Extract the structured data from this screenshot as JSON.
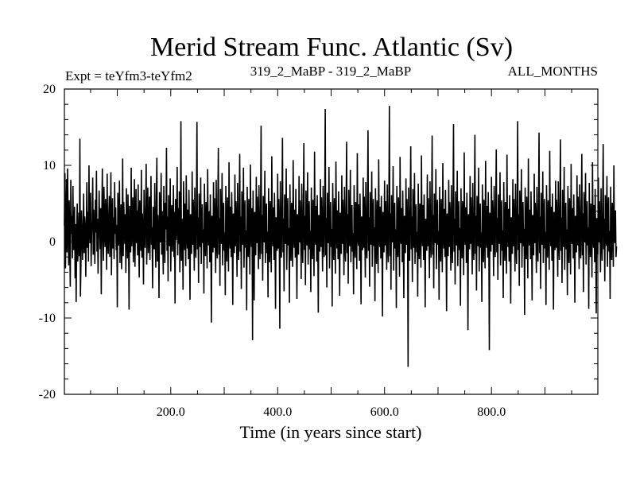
{
  "chart_data": {
    "type": "line",
    "title": "Merid Stream Func. Atlantic (Sv)",
    "subtitle_left": "Expt = teYfm3-teYfm2",
    "subtitle_center": "319_2_MaBP - 319_2_MaBP",
    "subtitle_right": "ALL_MONTHS",
    "xlabel": "Time (in years since start)",
    "ylabel": "",
    "xlim": [
      1,
      999
    ],
    "ylim": [
      -20,
      20
    ],
    "x_ticks": [
      200,
      400,
      600,
      800
    ],
    "x_tick_labels": [
      "200.0",
      "400.0",
      "600.0",
      "800.0"
    ],
    "y_ticks": [
      -20,
      -10,
      0,
      10,
      20
    ],
    "y_tick_labels": [
      "-20",
      "-10",
      "0",
      "10",
      "20"
    ],
    "zero_line": true,
    "series_color": "#000000",
    "series": [
      {
        "values_description_note": null,
        "x_start": 1,
        "x_step": 1,
        "values": [
          2.1,
          9.0,
          -3.5,
          1.6,
          8.2,
          -1.4,
          9.6,
          2.8,
          -3.1,
          5.4,
          0.2,
          -5.9,
          8.1,
          1.0,
          3.4,
          -2.2,
          7.3,
          -1.1,
          0.5,
          4.6,
          -4.8,
          2.3,
          -7.9,
          1.2,
          5.0,
          -2.6,
          -0.4,
          3.8,
          -1.9,
          13.5,
          -7.2,
          -3.0,
          4.1,
          1.8,
          -2.4,
          0.9,
          6.3,
          -1.5,
          3.3,
          2.1,
          -4.6,
          1.4,
          7.8,
          -0.8,
          3.9,
          -2.6,
          10.0,
          1.5,
          -0.2,
          6.4,
          -3.2,
          1.1,
          2.8,
          8.4,
          -1.7,
          4.2,
          0.6,
          -2.9,
          5.5,
          1.2,
          9.3,
          -1.3,
          3.0,
          -4.2,
          0.8,
          6.7,
          2.1,
          -1.0,
          4.4,
          -6.9,
          3.1,
          9.6,
          0.4,
          -2.5,
          7.2,
          1.9,
          -0.7,
          5.6,
          2.8,
          -3.7,
          8.9,
          0.5,
          -1.6,
          3.4,
          6.0,
          -2.0,
          1.3,
          9.1,
          -4.4,
          2.6,
          5.7,
          -0.9,
          3.2,
          -2.3,
          7.8,
          1.0,
          4.5,
          -1.1,
          2.2,
          -8.6,
          6.4,
          3.0,
          -0.5,
          8.0,
          -2.8,
          1.6,
          4.9,
          -3.6,
          0.2,
          10.9,
          -1.9,
          5.2,
          2.7,
          -0.3,
          3.6,
          -4.1,
          7.0,
          1.5,
          -2.2,
          6.2,
          0.8,
          -8.9,
          4.7,
          2.4,
          -1.4,
          9.7,
          -0.6,
          3.1,
          5.8,
          -2.7,
          1.1,
          8.2,
          -3.3,
          2.9,
          6.9,
          -0.2,
          4.1,
          -1.8,
          7.5,
          0.3,
          -4.7,
          5.4,
          2.0,
          -1.2,
          9.4,
          -2.1,
          3.7,
          0.9,
          -5.6,
          6.8,
          1.4,
          -0.8,
          4.3,
          10.2,
          -3.0,
          2.5,
          7.1,
          -1.5,
          0.6,
          5.9,
          -2.4,
          3.8,
          8.6,
          -0.4,
          1.9,
          -6.1,
          4.6,
          2.2,
          -1.0,
          7.7,
          0.7,
          -3.4,
          5.3,
          11.0,
          -2.6,
          3.5,
          1.2,
          -7.4,
          6.5,
          2.8,
          -0.1,
          9.0,
          -1.7,
          4.0,
          0.4,
          -4.3,
          7.3,
          2.1,
          -2.8,
          5.1,
          1.6,
          12.3,
          -1.2,
          3.3,
          -5.2,
          6.1,
          0.9,
          -0.6,
          8.3,
          -3.9,
          2.7,
          4.8,
          -1.3,
          1.0,
          7.4,
          -2.0,
          3.9,
          -8.1,
          5.6,
          0.2,
          2.6,
          9.8,
          -1.8,
          4.4,
          -0.3,
          6.6,
          -4.0,
          1.7,
          15.8,
          -2.5,
          3.0,
          0.8,
          -6.3,
          7.9,
          2.3,
          -1.1,
          5.0,
          -3.2,
          8.7,
          1.4,
          -0.9,
          4.2,
          -2.3,
          6.8,
          0.5,
          -7.6,
          3.6,
          1.9,
          -1.6,
          9.2,
          -0.4,
          5.5,
          2.0,
          -3.8,
          7.1,
          0.3,
          -2.1,
          4.7,
          15.7,
          -1.0,
          3.2,
          -5.4,
          6.3,
          1.1,
          -0.7,
          8.4,
          -2.9,
          2.5,
          4.9,
          -0.2,
          1.6,
          -6.8,
          7.6,
          0.8,
          -1.9,
          5.2,
          2.9,
          -3.5,
          9.5,
          1.3,
          -0.5,
          4.0,
          -2.7,
          6.2,
          0.6,
          -10.6,
          3.4,
          2.2,
          -1.4,
          7.8,
          -0.8,
          5.7,
          1.5,
          -4.1,
          8.1,
          0.2,
          -2.2,
          4.3,
          12.3,
          -1.7,
          3.1,
          -5.8,
          6.9,
          0.9,
          -0.3,
          9.0,
          -3.1,
          2.8,
          5.1,
          -1.2,
          1.2,
          -7.0,
          7.3,
          0.4,
          -2.6,
          5.8,
          2.4,
          -3.9,
          10.4,
          1.0,
          -0.9,
          4.6,
          -2.0,
          6.5,
          0.7,
          -8.3,
          3.7,
          1.8,
          -1.5,
          8.8,
          -0.6,
          5.3,
          1.9,
          -4.6,
          7.7,
          0.1,
          -2.4,
          4.8,
          11.5,
          -1.3,
          3.3,
          -6.2,
          6.6,
          1.2,
          -0.4,
          9.7,
          -3.4,
          2.6,
          5.4,
          -0.8,
          1.5,
          -9.0,
          7.2,
          0.6,
          -2.0,
          5.6,
          2.1,
          -4.3,
          10.1,
          1.4,
          -0.7,
          4.4,
          -12.9,
          6.7,
          0.3,
          -7.7,
          3.9,
          2.0,
          -1.8,
          8.5,
          -0.2,
          5.9,
          1.6,
          -3.6,
          7.4,
          0.8,
          -2.3,
          4.1,
          15.2,
          -1.6,
          3.5,
          -5.1,
          6.0,
          1.0,
          -0.1,
          9.3,
          -2.8,
          2.9,
          5.0,
          -1.5,
          1.3,
          -7.3,
          7.0,
          0.5,
          -2.7,
          5.3,
          2.5,
          -4.0,
          11.2,
          1.1,
          -0.6,
          4.5,
          -2.4,
          6.4,
          0.9,
          -8.8,
          3.2,
          1.7,
          -1.2,
          8.9,
          -0.9,
          5.6,
          1.3,
          -11.4,
          7.9,
          0.2,
          -2.1,
          4.9,
          13.6,
          -1.4,
          3.0,
          -6.5,
          6.2,
          1.5,
          -0.3,
          9.6,
          -3.7,
          2.4,
          5.7,
          -0.5,
          1.8,
          -8.0,
          7.5,
          0.7,
          -2.5,
          5.1,
          2.6,
          -3.3,
          10.7,
          1.2,
          -0.8,
          4.2,
          -2.1,
          6.9,
          0.4,
          -7.5,
          3.6,
          2.3,
          -1.7,
          8.6,
          -0.1,
          5.4,
          1.7,
          -4.9,
          7.6,
          0.9,
          -2.8,
          4.6,
          12.9,
          -1.1,
          3.4,
          -5.7,
          6.7,
          1.3,
          -0.5,
          9.1,
          -3.0,
          2.7,
          5.3,
          -1.0,
          1.4,
          -6.6,
          7.1,
          0.6,
          -2.3,
          5.5,
          2.2,
          -4.5,
          11.8,
          1.0,
          -0.4,
          4.7,
          -2.6,
          6.1,
          0.8,
          -9.3,
          3.5,
          1.9,
          -1.3,
          8.2,
          -0.7,
          5.8,
          1.4,
          -3.9,
          7.3,
          0.3,
          -2.0,
          4.4,
          17.4,
          -1.8,
          3.1,
          -6.0,
          6.4,
          1.1,
          -0.2,
          9.8,
          -3.5,
          2.5,
          5.2,
          -0.7,
          1.7,
          -8.5,
          7.7,
          0.5,
          -2.4,
          5.7,
          2.0,
          -4.2,
          10.5,
          1.5,
          -0.9,
          4.1,
          -2.3,
          6.6,
          0.2,
          -7.1,
          3.8,
          2.1,
          -1.6,
          8.7,
          -0.3,
          5.5,
          1.8,
          -4.4,
          7.2,
          0.7,
          -2.6,
          4.3,
          13.1,
          -1.5,
          3.6,
          -5.5,
          6.8,
          1.4,
          -0.6,
          9.4,
          -2.7,
          2.8,
          4.8,
          -1.3,
          1.1,
          -6.9,
          7.4,
          0.4,
          -2.1,
          5.2,
          2.7,
          -3.6,
          11.6,
          1.2,
          -0.5,
          4.9,
          -2.5,
          6.3,
          0.6,
          -8.2,
          3.3,
          1.6,
          -1.1,
          8.4,
          -0.8,
          5.9,
          1.2,
          -4.7,
          7.8,
          0.1,
          -2.2,
          4.5,
          14.6,
          -1.2,
          3.2,
          -5.9,
          6.5,
          1.0,
          -0.4,
          9.2,
          -3.3,
          2.6,
          5.6,
          -0.6,
          1.9,
          -7.8,
          7.0,
          0.8,
          -2.9,
          5.4,
          2.4,
          -4.1,
          10.8,
          1.3,
          -0.7,
          4.6,
          -2.2,
          6.0,
          0.9,
          -9.8,
          3.9,
          2.2,
          -1.4,
          8.0,
          -0.5,
          5.3,
          1.5,
          -3.7,
          7.5,
          0.4,
          -2.7,
          4.2,
          17.8,
          -1.9,
          3.7,
          -6.3,
          6.1,
          1.2,
          -0.1,
          9.9,
          -3.8,
          2.3,
          5.1,
          -0.9,
          1.6,
          -8.7,
          7.3,
          0.3,
          -2.0,
          5.8,
          2.3,
          -4.6,
          11.1,
          1.1,
          -0.3,
          4.4,
          -2.7,
          6.7,
          0.5,
          -7.4,
          3.4,
          1.8,
          -1.5,
          8.3,
          -0.4,
          5.6,
          1.9,
          -16.4,
          7.1,
          0.6,
          -2.5,
          4.7,
          12.5,
          -1.0,
          3.3,
          -5.3,
          6.9,
          1.5,
          -0.8,
          9.0,
          -2.9,
          2.9,
          4.9,
          -1.4,
          1.3,
          -7.2,
          7.6,
          0.2,
          -2.3,
          5.0,
          2.8,
          -3.4,
          11.3,
          1.0,
          -0.6,
          4.8,
          -2.4,
          6.2,
          0.7,
          -8.6,
          3.0,
          1.7,
          -1.2,
          8.8,
          -0.6,
          5.7,
          1.1,
          -4.8,
          7.9,
          0.9,
          -2.1,
          4.0,
          13.9,
          -1.7,
          3.5,
          -6.1,
          6.3,
          1.3,
          -0.2,
          9.5,
          -3.6,
          2.5,
          5.5,
          -0.4,
          1.4,
          -7.6,
          7.2,
          0.5,
          -2.6,
          5.6,
          2.1,
          -4.0,
          10.3,
          1.4,
          -0.9,
          4.3,
          -2.0,
          6.8,
          0.3,
          -9.1,
          3.7,
          2.0,
          -1.9,
          8.1,
          -0.7,
          5.2,
          1.6,
          -3.8,
          7.4,
          0.8,
          -2.8,
          4.6,
          15.4,
          -1.3,
          3.0,
          -5.6,
          6.6,
          1.1,
          -0.5,
          9.3,
          -3.2,
          2.7,
          5.3,
          -1.1,
          1.8,
          -8.4,
          7.0,
          0.7,
          -2.2,
          5.3,
          2.6,
          -4.4,
          11.7,
          1.2,
          -0.4,
          4.5,
          -2.8,
          6.4,
          0.4,
          -11.6,
          3.6,
          1.9,
          -1.0,
          8.6,
          -0.3,
          5.8,
          1.3,
          -4.3,
          7.7,
          0.2,
          -2.4,
          4.1,
          14.0,
          -1.6,
          3.4,
          -6.4,
          6.0,
          1.5,
          -0.6,
          9.7,
          -3.9,
          2.4,
          5.0,
          -0.8,
          1.2,
          -7.9,
          7.5,
          0.6,
          -2.7,
          5.5,
          2.2,
          -3.5,
          10.6,
          1.0,
          -0.8,
          4.7,
          -2.1,
          6.5,
          0.8,
          -14.2,
          3.8,
          2.3,
          -1.3,
          8.5,
          -0.4,
          5.4,
          1.7,
          -4.5,
          7.3,
          0.5,
          -2.0,
          4.8,
          12.1,
          -1.4,
          3.1,
          -5.0,
          6.2,
          1.2,
          -0.3,
          9.1,
          -3.1,
          2.8,
          5.4,
          -1.2,
          1.5,
          -7.4,
          7.8,
          0.3,
          -2.5,
          5.2,
          2.5,
          -4.2,
          11.4,
          1.3,
          -0.7,
          4.3,
          -2.6,
          6.1,
          0.6,
          -8.1,
          3.2,
          1.8,
          -1.6,
          8.2,
          -0.6,
          5.6,
          1.4,
          -3.9,
          7.6,
          0.7,
          -2.9,
          4.5,
          15.8,
          -1.1,
          3.6,
          -5.8,
          6.7,
          1.0,
          -0.2,
          9.5,
          -3.4,
          2.6,
          5.2,
          -0.6,
          1.7,
          -9.6,
          7.1,
          0.4,
          -2.3,
          5.9,
          2.0,
          -4.8,
          10.9,
          1.1,
          -0.5,
          4.2,
          -2.3,
          6.6,
          0.9,
          -7.7,
          3.5,
          2.1,
          -1.8,
          8.9,
          -0.2,
          5.1,
          1.8,
          -4.1,
          7.2,
          0.1,
          -2.6,
          4.4,
          14.3,
          -1.5,
          3.3,
          -6.2,
          6.4,
          1.4,
          -0.4,
          9.2,
          -2.8,
          2.5,
          5.6,
          -0.9,
          1.3,
          -8.3,
          7.4,
          0.8,
          -2.1,
          5.4,
          2.3,
          -3.7,
          11.9,
          1.5,
          -0.6,
          4.6,
          -2.5,
          6.3,
          0.2,
          -8.9,
          3.9,
          1.6,
          -1.1,
          8.0,
          -0.8,
          5.5,
          1.2,
          -4.6,
          7.9,
          0.6,
          -2.4,
          4.9,
          13.4,
          -1.2,
          3.2,
          -5.4,
          6.8,
          1.3,
          -0.7,
          9.8,
          -3.7,
          2.9,
          5.1,
          -1.0,
          1.6,
          -7.0,
          7.3,
          0.3,
          -2.8,
          5.7,
          2.7,
          -4.3,
          10.2,
          1.2,
          -0.3,
          4.4,
          -2.2,
          6.2,
          0.5,
          -8.0,
          3.4,
          2.2,
          -1.4,
          8.7,
          -0.5,
          5.9,
          1.5,
          -3.6,
          7.5,
          0.9,
          -2.2,
          4.0,
          11.5,
          -1.8,
          3.7,
          -6.6,
          6.5,
          1.1,
          -0.1,
          9.0,
          -3.0,
          2.3,
          5.3,
          -0.5,
          1.9,
          -8.8,
          7.7,
          0.2,
          -2.0,
          5.0,
          2.4,
          -4.7,
          10.4,
          1.4,
          -0.8,
          4.8,
          -2.7,
          6.9,
          0.7,
          -9.4,
          3.1,
          1.7,
          -1.7,
          8.4,
          -0.1,
          5.3,
          1.9,
          -4.0,
          7.0,
          0.4,
          -2.5,
          4.2,
          12.8,
          -1.0,
          3.0,
          -5.2,
          6.1,
          1.5,
          -0.5,
          8.6,
          -3.3,
          2.6,
          5.8,
          -1.3,
          1.4,
          -7.5,
          7.2,
          0.6,
          -2.4,
          5.1,
          2.8,
          -3.3,
          10.0,
          1.0,
          -0.2,
          4.1,
          -2.0,
          -0.6
        ]
      }
    ]
  }
}
